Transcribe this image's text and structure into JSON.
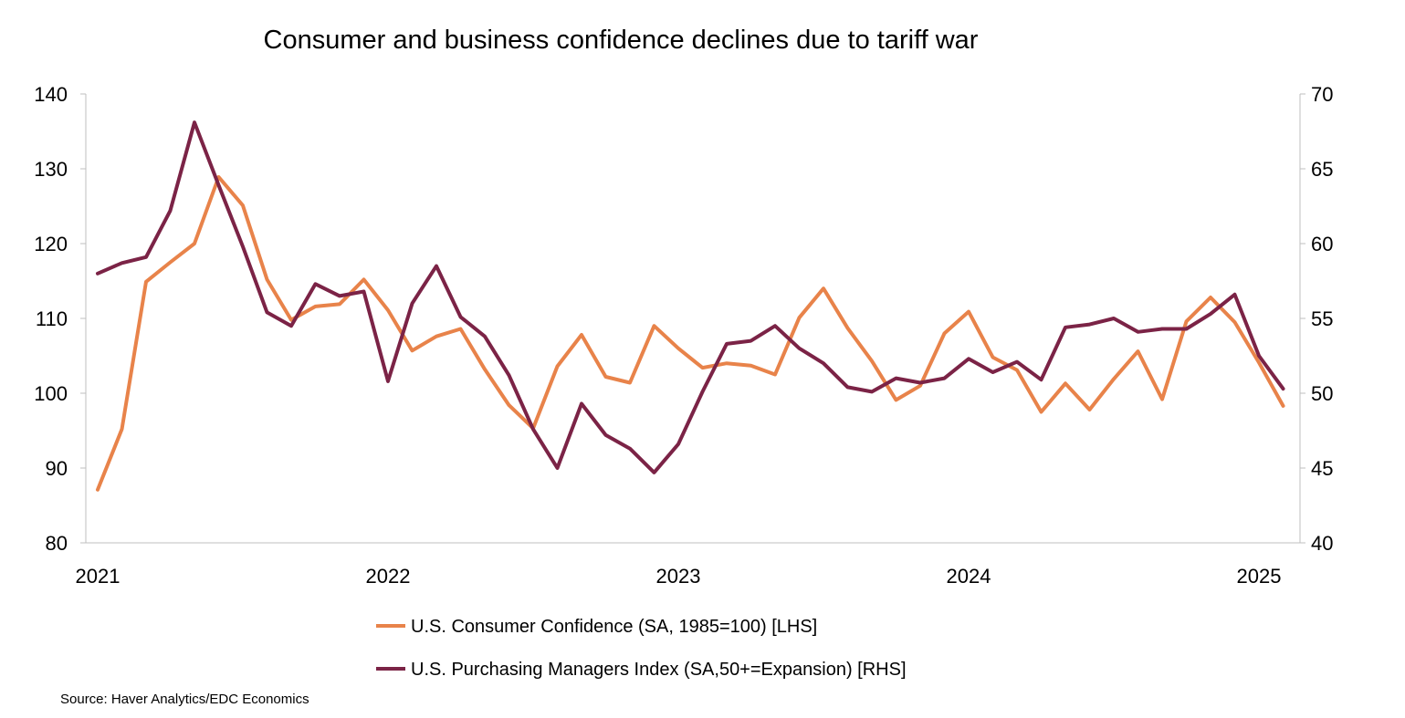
{
  "chart_data": {
    "type": "line",
    "title": "Consumer and business confidence declines due to tariff war",
    "x_tick_labels": [
      "2021",
      "2022",
      "2023",
      "2024",
      "2025"
    ],
    "x_tick_index": [
      0,
      12,
      24,
      36,
      48
    ],
    "y_left": {
      "ticks": [
        "80",
        "90",
        "100",
        "110",
        "120",
        "130",
        "140"
      ],
      "ylim": [
        80,
        140
      ]
    },
    "y_right": {
      "ticks": [
        "40",
        "45",
        "50",
        "55",
        "60",
        "65",
        "70"
      ],
      "ylim": [
        40,
        70
      ]
    },
    "series": [
      {
        "name": "U.S. Consumer Confidence (SA, 1985=100) [LHS]",
        "axis": "left",
        "color": "#E8834A",
        "values": [
          87.1,
          95.2,
          114.9,
          117.5,
          120.0,
          128.9,
          125.1,
          115.2,
          109.8,
          111.6,
          111.9,
          115.2,
          111.1,
          105.7,
          107.6,
          108.6,
          103.2,
          98.4,
          95.3,
          103.6,
          107.8,
          102.2,
          101.4,
          109.0,
          106.0,
          103.4,
          104.0,
          103.7,
          102.5,
          110.1,
          114.0,
          108.7,
          104.3,
          99.1,
          101.0,
          108.0,
          110.9,
          104.8,
          103.1,
          97.5,
          101.3,
          97.8,
          101.9,
          105.6,
          99.2,
          109.6,
          112.8,
          109.5,
          104.1,
          98.3
        ]
      },
      {
        "name": "U.S. Purchasing Managers Index (SA,50+=Expansion) [RHS]",
        "axis": "right",
        "color": "#7B2346",
        "values": [
          58.0,
          58.7,
          59.1,
          62.2,
          68.1,
          63.9,
          59.8,
          55.4,
          54.5,
          57.3,
          56.5,
          56.8,
          50.8,
          56.0,
          58.5,
          55.1,
          53.8,
          51.2,
          47.6,
          45.0,
          49.3,
          47.2,
          46.3,
          44.7,
          46.6,
          50.1,
          53.3,
          53.5,
          54.5,
          53.0,
          52.0,
          50.4,
          50.1,
          51.0,
          50.7,
          51.0,
          52.3,
          51.4,
          52.1,
          50.9,
          54.4,
          54.6,
          55.0,
          54.1,
          54.3,
          54.3,
          55.3,
          56.6,
          52.5,
          50.3
        ]
      }
    ],
    "legend": [
      "U.S. Consumer Confidence (SA, 1985=100) [LHS]",
      "U.S. Purchasing Managers Index (SA,50+=Expansion) [RHS]"
    ],
    "legend_position": "bottom",
    "grid": false
  },
  "source": "Source: Haver Analytics/EDC Economics"
}
